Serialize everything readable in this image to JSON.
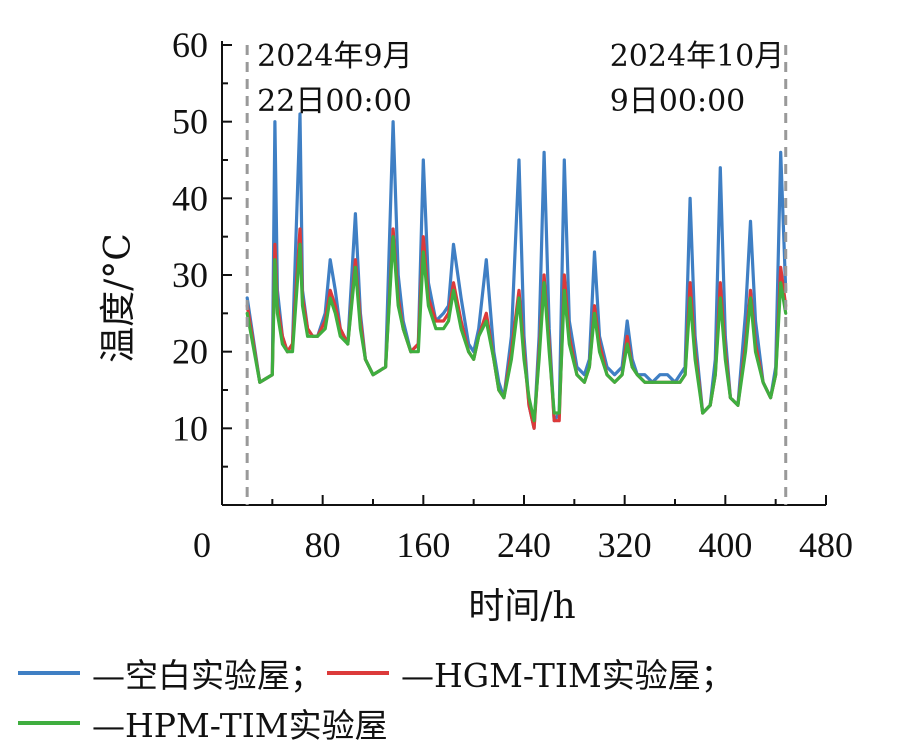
{
  "chart_data": {
    "type": "line",
    "xlabel": "时间/h",
    "ylabel": "温度/°C",
    "xlim": [
      0,
      480
    ],
    "ylim": [
      0,
      60
    ],
    "x_ticks": [
      "0",
      "80",
      "160",
      "240",
      "320",
      "400",
      "480"
    ],
    "y_ticks": [
      "10",
      "20",
      "30",
      "40",
      "50",
      "60"
    ],
    "grid": false,
    "legend_position": "bottom",
    "annotations": [
      {
        "x": 20,
        "line1": "2024年9月",
        "line2": "22日00:00"
      },
      {
        "x": 448,
        "line1": "2024年10月",
        "line2": "9日00:00"
      }
    ],
    "x": [
      20,
      30,
      40,
      42,
      44,
      48,
      52,
      56,
      62,
      64,
      68,
      72,
      76,
      82,
      86,
      90,
      94,
      100,
      106,
      110,
      114,
      120,
      130,
      136,
      140,
      144,
      150,
      156,
      160,
      164,
      170,
      176,
      180,
      184,
      190,
      196,
      200,
      204,
      210,
      216,
      220,
      224,
      230,
      236,
      240,
      244,
      248,
      252,
      256,
      260,
      264,
      268,
      272,
      276,
      282,
      288,
      292,
      296,
      300,
      306,
      312,
      318,
      322,
      326,
      330,
      336,
      342,
      348,
      354,
      360,
      364,
      368,
      372,
      376,
      382,
      388,
      392,
      396,
      400,
      404,
      410,
      416,
      420,
      424,
      430,
      436,
      440,
      444,
      448
    ],
    "series": [
      {
        "name": "空白实验屋",
        "color": "#3f7fc4",
        "values": [
          27,
          16,
          17,
          50,
          28,
          22,
          20,
          21,
          51,
          28,
          23,
          22,
          22,
          25,
          32,
          28,
          23,
          21,
          38,
          25,
          19,
          17,
          18,
          50,
          30,
          24,
          20,
          21,
          45,
          29,
          24,
          25,
          26,
          34,
          27,
          21,
          20,
          23,
          32,
          20,
          16,
          14,
          22,
          45,
          22,
          13,
          10,
          22,
          46,
          23,
          11,
          12,
          45,
          24,
          18,
          17,
          19,
          33,
          22,
          18,
          17,
          18,
          24,
          19,
          17,
          17,
          16,
          17,
          17,
          16,
          17,
          18,
          40,
          22,
          12,
          13,
          19,
          44,
          22,
          14,
          13,
          25,
          37,
          24,
          16,
          14,
          18,
          46,
          28
        ]
      },
      {
        "name": "HGM-TIM实验屋",
        "color": "#dc3a3a",
        "values": [
          26,
          16,
          17,
          34,
          26,
          22,
          20,
          21,
          36,
          27,
          23,
          22,
          22,
          24,
          28,
          26,
          23,
          21,
          32,
          24,
          19,
          17,
          18,
          36,
          27,
          23,
          20,
          21,
          35,
          27,
          24,
          24,
          25,
          29,
          24,
          20,
          19,
          22,
          25,
          19,
          15,
          14,
          20,
          28,
          20,
          13,
          10,
          20,
          30,
          21,
          11,
          11,
          30,
          22,
          17,
          16,
          18,
          26,
          21,
          17,
          16,
          17,
          22,
          18,
          17,
          16,
          16,
          16,
          16,
          16,
          16,
          17,
          29,
          20,
          12,
          13,
          17,
          29,
          20,
          14,
          13,
          21,
          28,
          21,
          16,
          14,
          17,
          31,
          26
        ]
      },
      {
        "name": "HPM-TIM实验屋",
        "color": "#3fae3f",
        "values": [
          25,
          16,
          17,
          32,
          25,
          21,
          20,
          20,
          34,
          26,
          22,
          22,
          22,
          23,
          27,
          25,
          22,
          21,
          31,
          23,
          19,
          17,
          18,
          35,
          26,
          23,
          20,
          20,
          33,
          26,
          23,
          23,
          24,
          28,
          23,
          20,
          19,
          22,
          24,
          19,
          15,
          14,
          19,
          27,
          19,
          14,
          11,
          19,
          29,
          20,
          12,
          12,
          28,
          21,
          17,
          16,
          18,
          25,
          20,
          17,
          16,
          17,
          21,
          18,
          17,
          16,
          16,
          16,
          16,
          16,
          16,
          17,
          27,
          19,
          12,
          13,
          17,
          27,
          19,
          14,
          13,
          20,
          27,
          20,
          16,
          14,
          17,
          29,
          25
        ]
      }
    ]
  },
  "legend": {
    "row1": [
      {
        "label": "—空白实验屋；",
        "color": "#3f7fc4"
      },
      {
        "label": "—HGM-TIM实验屋；",
        "color": "#dc3a3a"
      }
    ],
    "row2": [
      {
        "label": "—HPM-TIM实验屋",
        "color": "#3fae3f"
      }
    ]
  }
}
